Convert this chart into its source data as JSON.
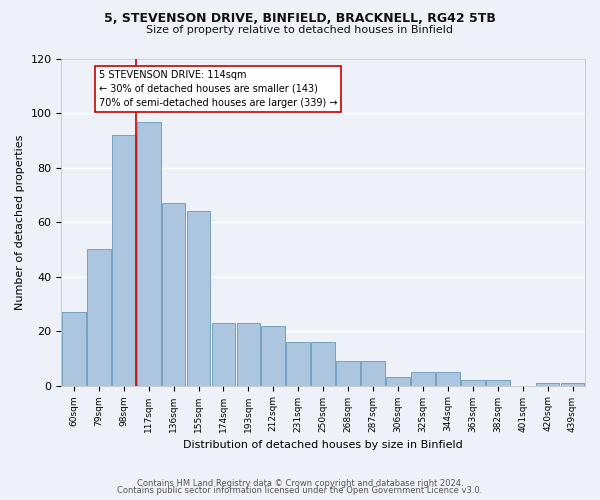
{
  "title1": "5, STEVENSON DRIVE, BINFIELD, BRACKNELL, RG42 5TB",
  "title2": "Size of property relative to detached houses in Binfield",
  "xlabel": "Distribution of detached houses by size in Binfield",
  "ylabel": "Number of detached properties",
  "categories": [
    "60sqm",
    "79sqm",
    "98sqm",
    "117sqm",
    "136sqm",
    "155sqm",
    "174sqm",
    "193sqm",
    "212sqm",
    "231sqm",
    "250sqm",
    "268sqm",
    "287sqm",
    "306sqm",
    "325sqm",
    "344sqm",
    "363sqm",
    "382sqm",
    "401sqm",
    "420sqm",
    "439sqm"
  ],
  "values": [
    27,
    50,
    92,
    97,
    67,
    64,
    23,
    23,
    22,
    16,
    16,
    9,
    9,
    3,
    5,
    5,
    2,
    2,
    0,
    1,
    1
  ],
  "bar_color": "#adc6df",
  "bar_edge_color": "#6699bb",
  "vline_color": "#cc0000",
  "vline_x": 2.5,
  "annotation_text_line1": "5 STEVENSON DRIVE: 114sqm",
  "annotation_text_line2": "← 30% of detached houses are smaller (143)",
  "annotation_text_line3": "70% of semi-detached houses are larger (339) →",
  "ylim": [
    0,
    120
  ],
  "yticks": [
    0,
    20,
    40,
    60,
    80,
    100,
    120
  ],
  "background_color": "#eef2f8",
  "grid_color": "#ffffff",
  "footer1": "Contains HM Land Registry data © Crown copyright and database right 2024.",
  "footer2": "Contains public sector information licensed under the Open Government Licence v3.0."
}
